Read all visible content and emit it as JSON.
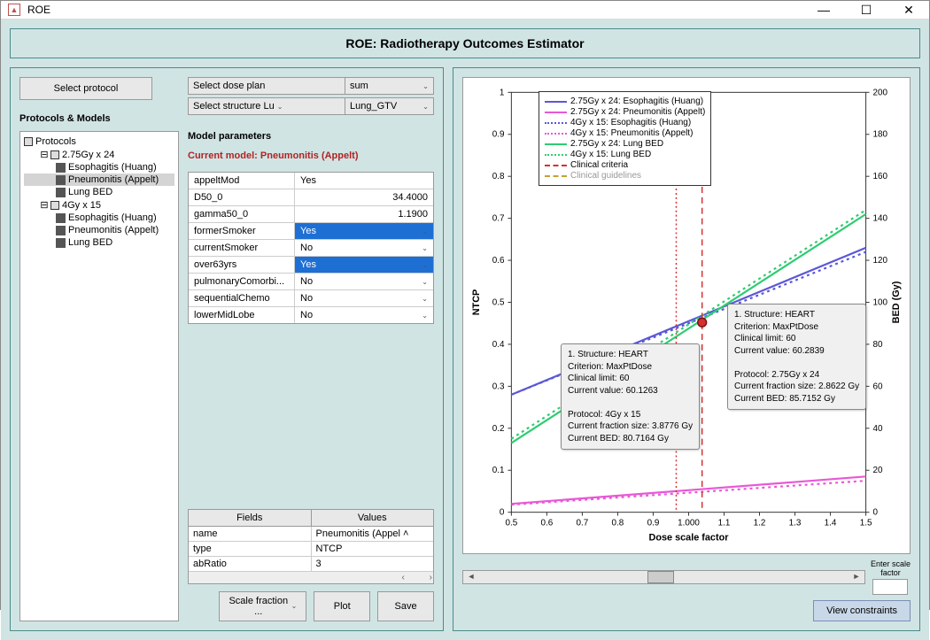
{
  "titlebar": {
    "title": "ROE"
  },
  "app_title": "ROE: Radiotherapy Outcomes Estimator",
  "left": {
    "select_protocol_btn": "Select protocol",
    "protocols_label": "Protocols & Models",
    "tree": {
      "root": "Protocols",
      "p1": "2.75Gy x 24",
      "p1_m1": "Esophagitis (Huang)",
      "p1_m2": "Pneumonitis (Appelt)",
      "p1_m3": "Lung BED",
      "p2": "4Gy x 15",
      "p2_m1": "Esophagitis (Huang)",
      "p2_m2": "Pneumonitis (Appelt)",
      "p2_m3": "Lung BED"
    },
    "dose_plan_label": "Select dose plan",
    "dose_plan_val": "sum",
    "structure_label": "Select structure Lu",
    "structure_val": "Lung_GTV",
    "model_params_label": "Model parameters",
    "current_model": "Current model:  Pneumonitis (Appelt)",
    "params": [
      {
        "name": "appeltMod",
        "val": "Yes",
        "hl": false,
        "dd": false,
        "right": false
      },
      {
        "name": "D50_0",
        "val": "34.4000",
        "hl": false,
        "dd": false,
        "right": true
      },
      {
        "name": "gamma50_0",
        "val": "1.1900",
        "hl": false,
        "dd": false,
        "right": true
      },
      {
        "name": "formerSmoker",
        "val": "Yes",
        "hl": true,
        "dd": true,
        "right": false
      },
      {
        "name": "currentSmoker",
        "val": "No",
        "hl": false,
        "dd": true,
        "right": false
      },
      {
        "name": "over63yrs",
        "val": "Yes",
        "hl": true,
        "dd": true,
        "right": false
      },
      {
        "name": "pulmonaryComorbi...",
        "val": "No",
        "hl": false,
        "dd": true,
        "right": false
      },
      {
        "name": "sequentialChemo",
        "val": "No",
        "hl": false,
        "dd": true,
        "right": false
      },
      {
        "name": "lowerMidLobe",
        "val": "No",
        "hl": false,
        "dd": true,
        "right": false
      }
    ],
    "fields_h1": "Fields",
    "fields_h2": "Values",
    "fields": [
      {
        "f": "name",
        "v": "Pneumonitis (Appel"
      },
      {
        "f": "type",
        "v": "NTCP"
      },
      {
        "f": "abRatio",
        "v": "3"
      }
    ],
    "scale_fraction_label": "Scale fraction ...",
    "plot_btn": "Plot",
    "save_btn": "Save"
  },
  "chart": {
    "xlabel": "Dose scale factor",
    "ylabel_left": "NTCP",
    "ylabel_right": "BED (Gy)",
    "xlim": [
      0.5,
      1.5
    ],
    "ylim_left": [
      0,
      1.0
    ],
    "ylim_right": [
      0,
      200
    ],
    "xticks": [
      "0.5",
      "0.6",
      "0.7",
      "0.8",
      "0.9",
      "1.000",
      "1.1",
      "1.2",
      "1.3",
      "1.4",
      "1.5"
    ],
    "yticks_left": [
      "0",
      "0.1",
      "0.2",
      "0.3",
      "0.4",
      "0.5",
      "0.6",
      "0.7",
      "0.8",
      "0.9",
      "1"
    ],
    "yticks_right": [
      "0",
      "20",
      "40",
      "60",
      "80",
      "100",
      "120",
      "140",
      "160",
      "180",
      "200"
    ],
    "legend": [
      {
        "label": "2.75Gy x 24: Esophagitis (Huang)",
        "color": "#5b57d6",
        "style": "solid"
      },
      {
        "label": "2.75Gy x 24: Pneumonitis (Appelt)",
        "color": "#e858d6",
        "style": "solid"
      },
      {
        "label": "4Gy x 15: Esophagitis (Huang)",
        "color": "#5b57d6",
        "style": "dotted"
      },
      {
        "label": "4Gy x 15: Pneumonitis (Appelt)",
        "color": "#e858d6",
        "style": "dotted"
      },
      {
        "label": "2.75Gy x 24: Lung BED",
        "color": "#2ecc71",
        "style": "solid"
      },
      {
        "label": "4Gy x 15: Lung BED",
        "color": "#2ecc71",
        "style": "dotted"
      },
      {
        "label": "Clinical criteria",
        "color": "#d43030",
        "style": "dashed"
      },
      {
        "label": "Clinical guidelines",
        "color": "#c9a030",
        "style": "dashed"
      }
    ],
    "series": {
      "eso_275": {
        "color": "#5b57d6",
        "style": "solid",
        "y0": 0.28,
        "y1": 0.63
      },
      "eso_4": {
        "color": "#5b57d6",
        "style": "dotted",
        "y0": 0.28,
        "y1": 0.62
      },
      "pneu_275": {
        "color": "#e858d6",
        "style": "solid",
        "y0": 0.02,
        "y1": 0.085
      },
      "pneu_4": {
        "color": "#e858d6",
        "style": "dotted",
        "y0": 0.018,
        "y1": 0.075
      },
      "bed_275": {
        "color": "#2ecc71",
        "style": "solid",
        "r0": 33,
        "r1": 142
      },
      "bed_4": {
        "color": "#2ecc71",
        "style": "dotted",
        "r0": 35,
        "r1": 144
      }
    },
    "vlines": [
      {
        "x": 0.965,
        "color": "#d43030",
        "style": "dotted"
      },
      {
        "x": 1.038,
        "color": "#d43030",
        "style": "dashed"
      }
    ],
    "markers": [
      {
        "x": 0.727,
        "y": 0.355,
        "fill": "#e8c040",
        "stroke": "#8a6a00"
      },
      {
        "x": 1.038,
        "y": 0.452,
        "fill": "#d43030",
        "stroke": "#7a1010"
      }
    ],
    "tooltip1": {
      "t1": "1. Structure: HEART",
      "t2": "Criterion: MaxPtDose",
      "t3": "Clinical limit: 60",
      "t4": "Current value: 60.1263",
      "t5": "Protocol: 4Gy x 15",
      "t6": "Current fraction size: 3.8776 Gy",
      "t7": "Current BED: 80.7164 Gy"
    },
    "tooltip2": {
      "t1": "1. Structure: HEART",
      "t2": "Criterion: MaxPtDose",
      "t3": "Clinical limit: 60",
      "t4": "Current value: 60.2839",
      "t5": "Protocol: 2.75Gy x 24",
      "t6": "Current fraction size: 2.8622 Gy",
      "t7": "Current BED: 85.7152 Gy"
    }
  },
  "enter_scale_label": "Enter scale\nfactor",
  "view_constraints_btn": "View constraints"
}
